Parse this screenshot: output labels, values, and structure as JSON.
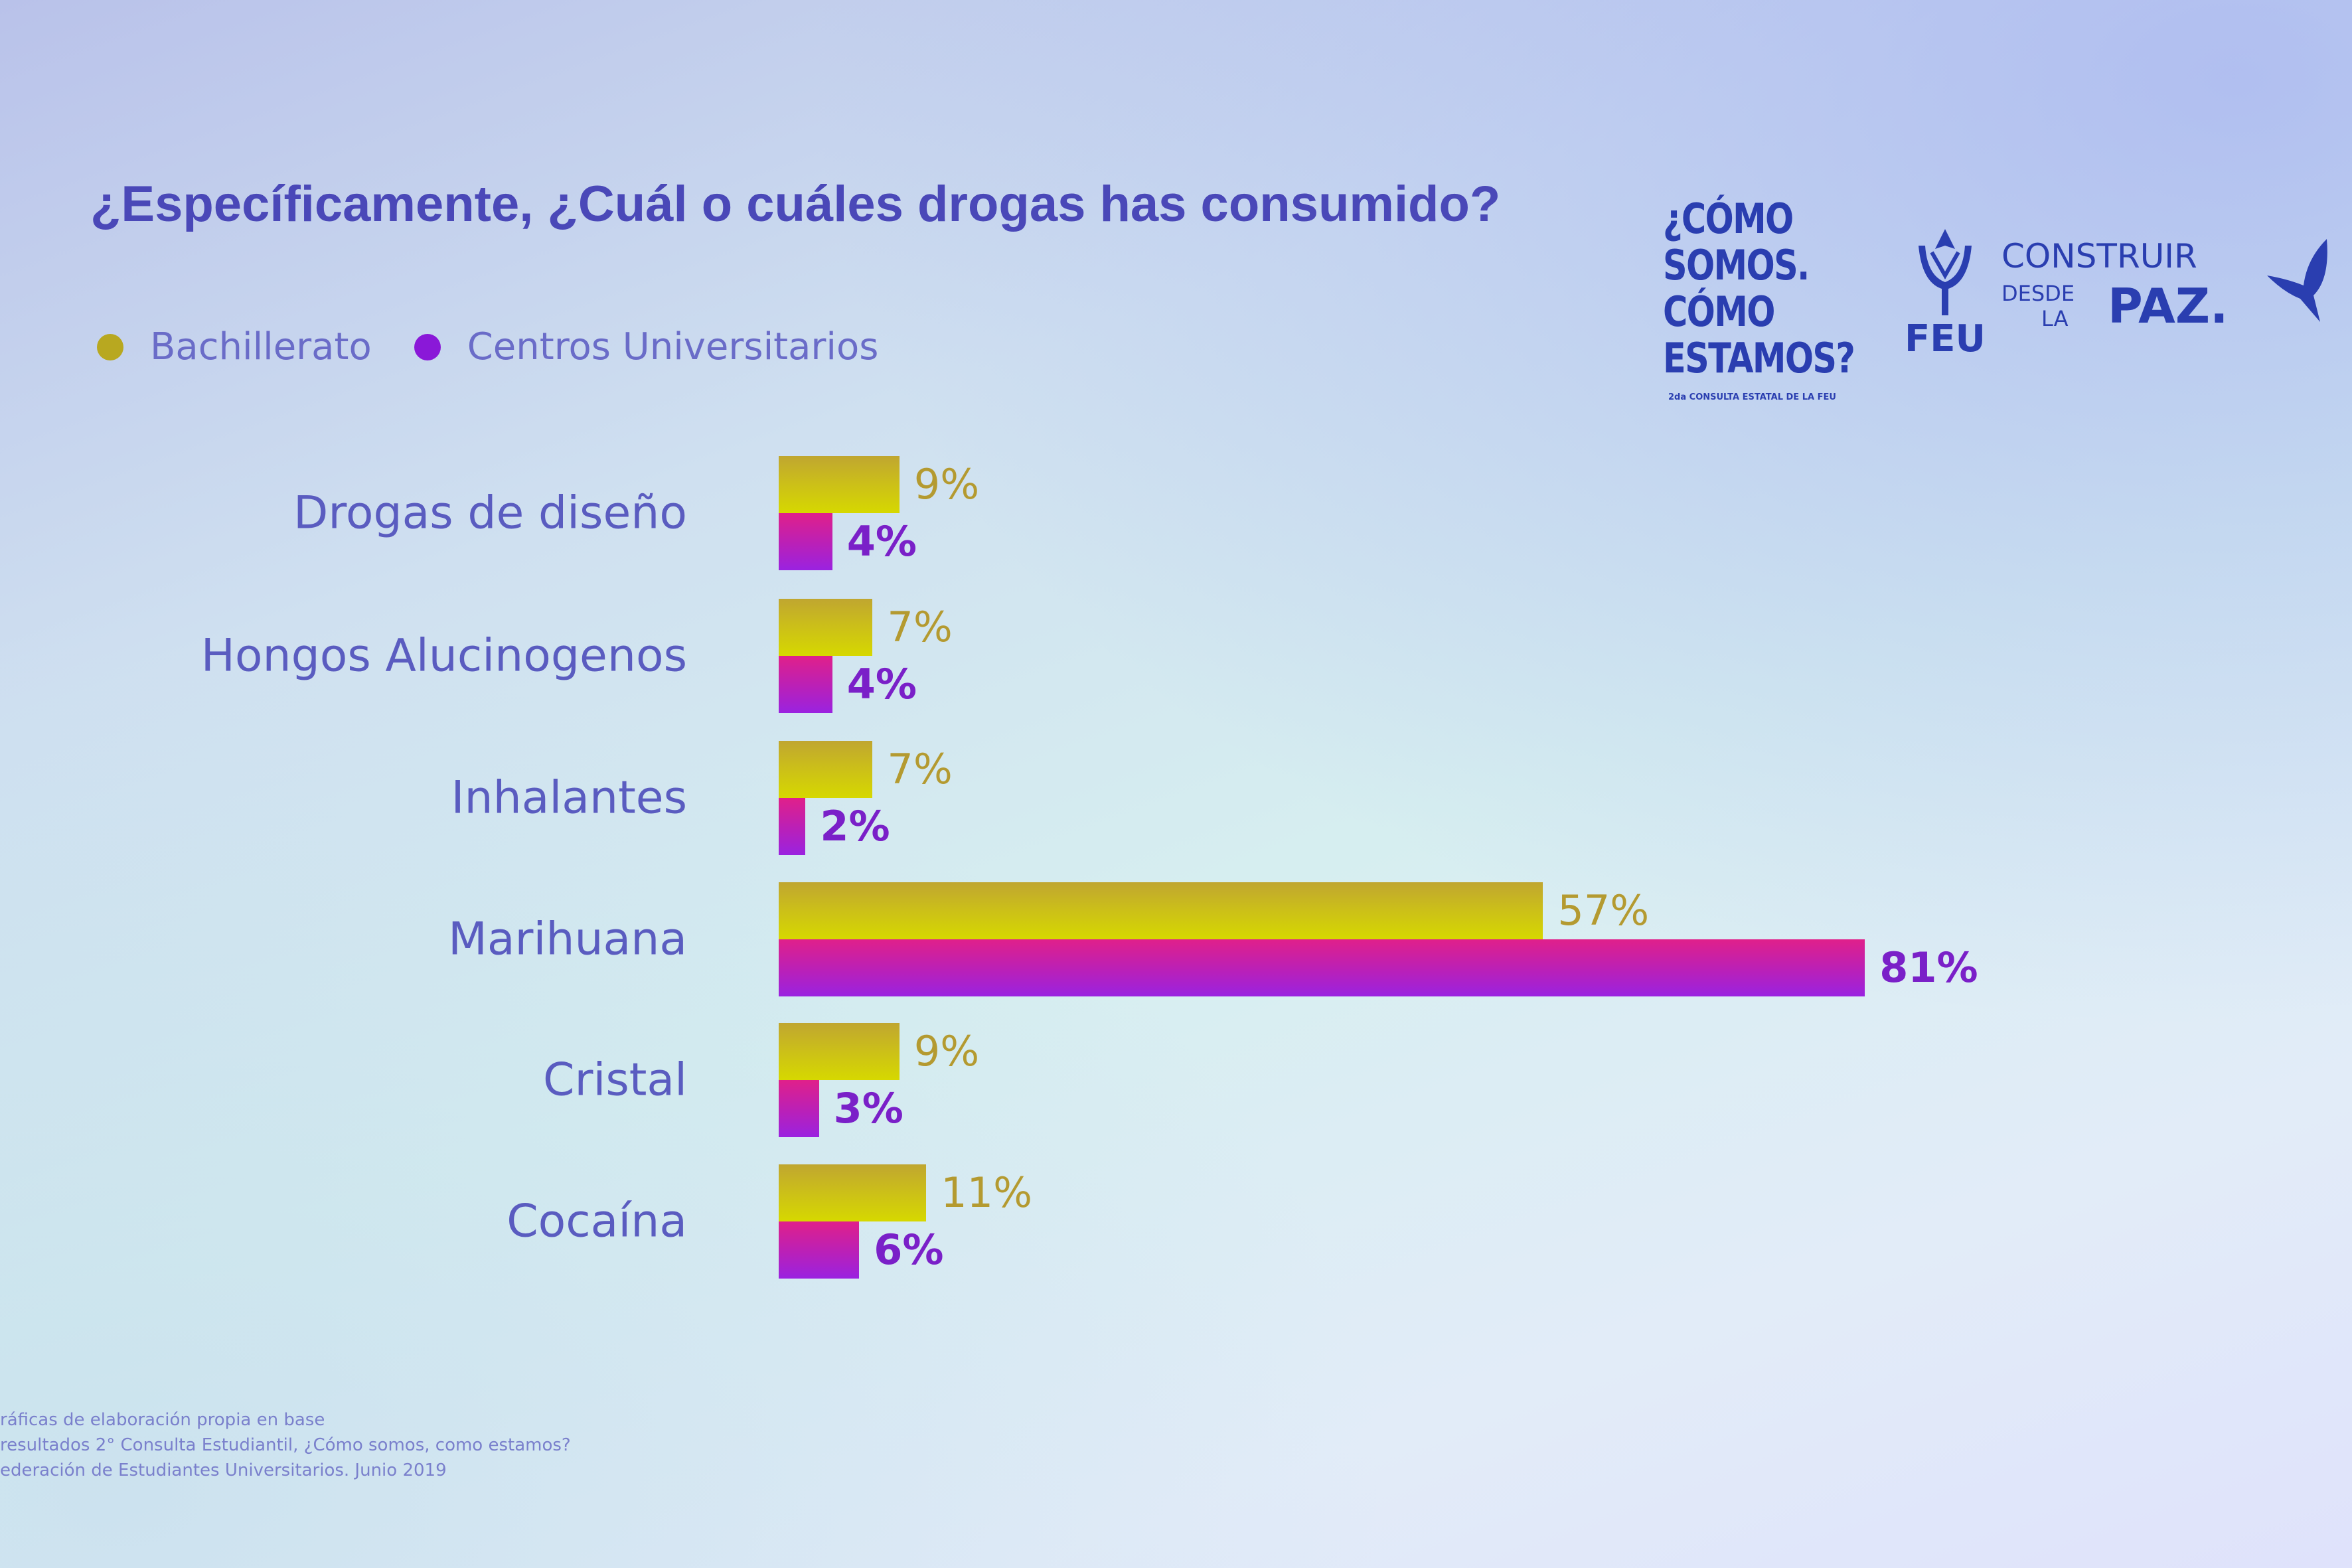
{
  "chart_data": {
    "type": "bar",
    "orientation": "horizontal",
    "title": "¿Específicamente, ¿Cuál o cuáles drogas has consumido?",
    "categories": [
      "Drogas de diseño",
      "Hongos Alucinogenos",
      "Inhalantes",
      "Marihuana",
      "Cristal",
      "Cocaína"
    ],
    "series": [
      {
        "name": "Bachillerato",
        "color": "#c8bc18",
        "values": [
          9,
          7,
          7,
          57,
          9,
          11
        ],
        "labels": [
          "9%",
          "7%",
          "7%",
          "57%",
          "9%",
          "11%"
        ]
      },
      {
        "name": "Centros Universitarios",
        "color": "#9a22e0",
        "values": [
          4,
          4,
          2,
          81,
          3,
          6
        ],
        "labels": [
          "4%",
          "4%",
          "2%",
          "81%",
          "3%",
          "6%"
        ]
      }
    ],
    "unit": "%",
    "xlim": [
      0,
      100
    ],
    "grid": false,
    "legend": "top-left"
  },
  "footer": {
    "lines": [
      "ráficas de elaboración propia en base",
      "resultados 2° Consulta Estudiantil, ¿Cómo somos, como estamos?",
      "ederación de Estudiantes Universitarios. Junio 2019"
    ]
  },
  "logos": {
    "como_lines": [
      "¿CÓMO",
      "SOMOS.",
      "CÓMO",
      "ESTAMOS?"
    ],
    "como_sub": "2da CONSULTA ESTATAL DE LA FEU",
    "feu": "FEU",
    "construir": "CONSTRUIR",
    "desde": "DESDE",
    "la": "LA",
    "paz": "PAZ."
  }
}
